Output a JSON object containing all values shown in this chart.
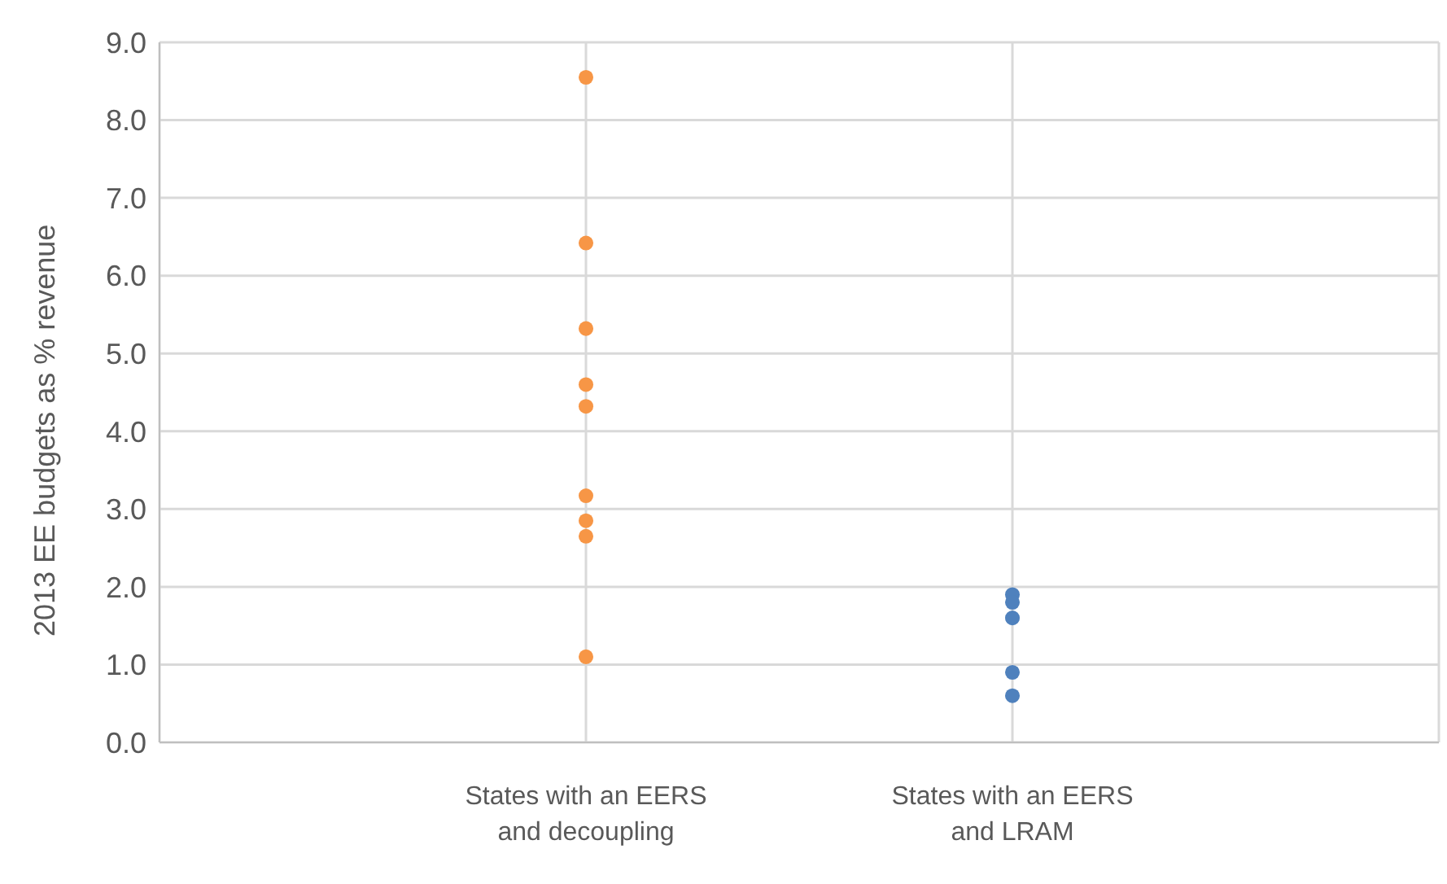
{
  "chart_data": {
    "type": "scatter",
    "ylabel": "2013 EE budgets as % revenue",
    "categories": [
      "States with an EERS and decoupling",
      "States with an EERS and LRAM"
    ],
    "series": [
      {
        "color": "#f79646",
        "x": [
          "States with an EERS and decoupling",
          "States with an EERS and decoupling",
          "States with an EERS and decoupling",
          "States with an EERS and decoupling",
          "States with an EERS and decoupling",
          "States with an EERS and decoupling",
          "States with an EERS and decoupling",
          "States with an EERS and decoupling",
          "States with an EERS and decoupling"
        ],
        "values": [
          8.55,
          6.42,
          5.32,
          4.6,
          4.32,
          3.17,
          2.85,
          2.65,
          1.1
        ]
      },
      {
        "color": "#4f81bd",
        "x": [
          "States with an EERS and LRAM",
          "States with an EERS and LRAM",
          "States with an EERS and LRAM",
          "States with an EERS and LRAM",
          "States with an EERS and LRAM"
        ],
        "values": [
          1.9,
          1.8,
          1.6,
          0.9,
          0.6
        ]
      }
    ],
    "ylim": [
      0,
      9
    ],
    "yticks": [
      {
        "value": 0,
        "label": "0.0"
      },
      {
        "value": 1,
        "label": "1.0"
      },
      {
        "value": 2,
        "label": "2.0"
      },
      {
        "value": 3,
        "label": "3.0"
      },
      {
        "value": 4,
        "label": "4.0"
      },
      {
        "value": 5,
        "label": "5.0"
      },
      {
        "value": 6,
        "label": "6.0"
      },
      {
        "value": 7,
        "label": "7.0"
      },
      {
        "value": 8,
        "label": "8.0"
      },
      {
        "value": 9,
        "label": "9.0"
      }
    ],
    "grid": true,
    "marker": "circle"
  }
}
